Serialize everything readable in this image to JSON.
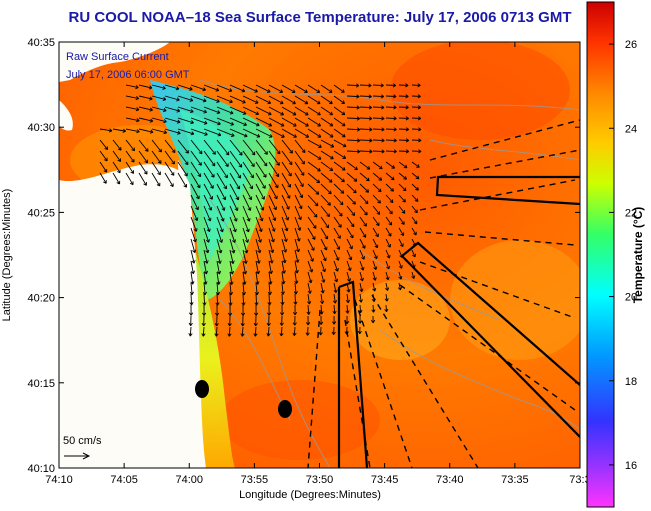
{
  "chart_data": {
    "type": "heatmap",
    "title": "RU COOL  NOAA–18  Sea Surface Temperature:  July 17, 2006 0713 GMT",
    "overlay_title": "Raw Surface Current",
    "overlay_time": "July 17, 2006 06:00 GMT",
    "xlabel": "Longitude (Degrees:Minutes)",
    "ylabel": "Latitude (Degrees:Minutes)",
    "x_ticks": [
      "74:10",
      "74:05",
      "74:00",
      "73:55",
      "73:50",
      "73:45",
      "73:40",
      "73:35",
      "73:3"
    ],
    "y_ticks": [
      "40:10",
      "40:15",
      "40:20",
      "40:25",
      "40:30",
      "40:35"
    ],
    "xlim": [
      "74:10 W",
      "73:30 W"
    ],
    "ylim": [
      "40:10 N",
      "40:35 N"
    ],
    "colorbar": {
      "label": "Temperature (°C)",
      "ticks": [
        "16",
        "18",
        "20",
        "22",
        "24",
        "26"
      ],
      "range": [
        15,
        27
      ]
    },
    "scale_arrow_label": "50 cm/s",
    "colors": {
      "title": "#1a1aa6",
      "land": "#fdfcf6",
      "warm_sst": "#ff6a00",
      "cool_sst": "#40e0a0",
      "arrows": "#000000",
      "survey_lines": "#000000"
    }
  }
}
